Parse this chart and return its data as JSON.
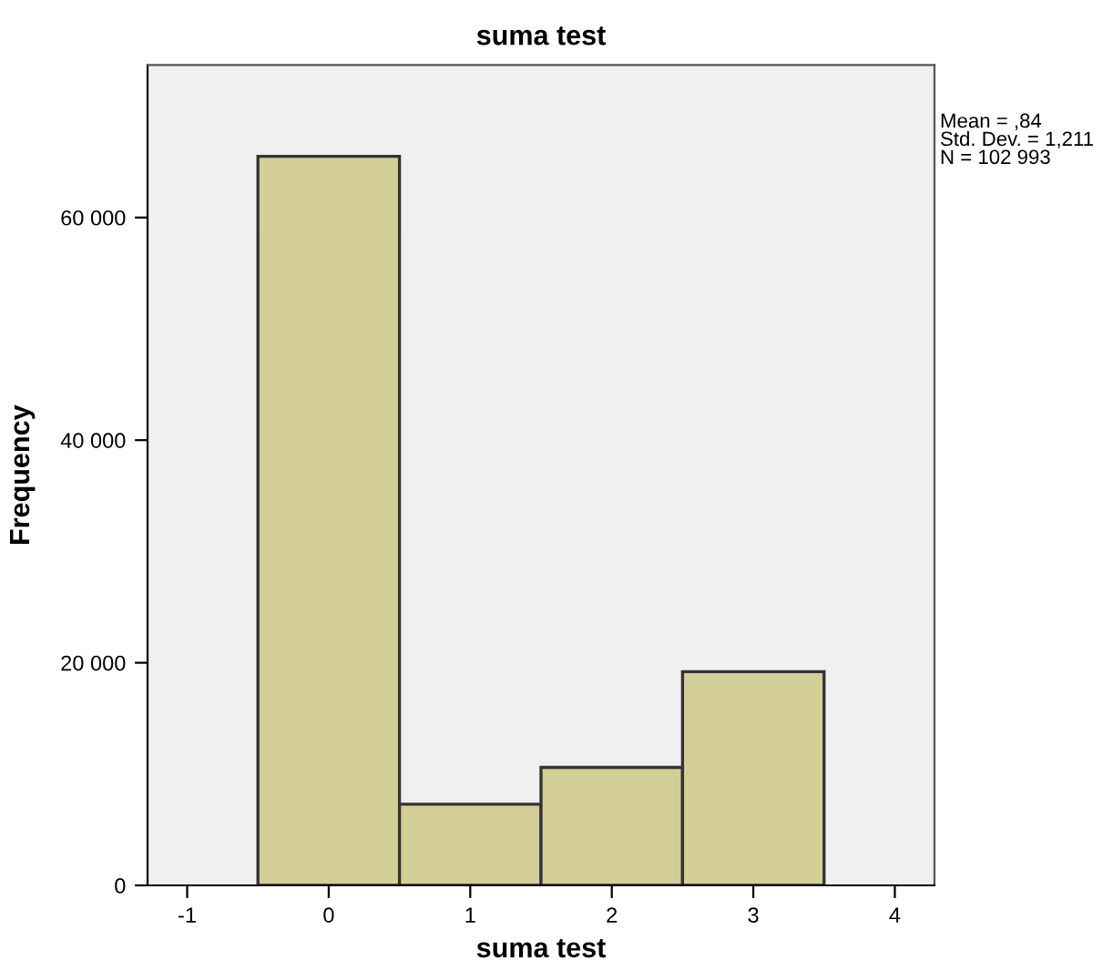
{
  "chart_data": {
    "type": "histogram",
    "title": "suma test",
    "xlabel": "suma test",
    "ylabel": "Frequency",
    "bins": [
      -0.5,
      0.5,
      1.5,
      2.5,
      3.5
    ],
    "values": [
      65500,
      7300,
      10600,
      19200
    ],
    "color": "#d3ce98",
    "xlim": [
      -1.28,
      4.28
    ],
    "xticks": [
      {
        "value": -1,
        "label": "-1"
      },
      0,
      1,
      2,
      3,
      4
    ],
    "ylim": [
      0,
      73700
    ],
    "yticks": [
      0,
      {
        "value": 20000,
        "label": "20 000"
      },
      {
        "value": 40000,
        "label": "40 000"
      },
      {
        "value": 60000,
        "label": "60 000"
      }
    ],
    "grid": false,
    "legend": false,
    "annotations": [
      "Mean = ,84\nStd. Dev. = 1,211\nN = 102 993"
    ]
  }
}
